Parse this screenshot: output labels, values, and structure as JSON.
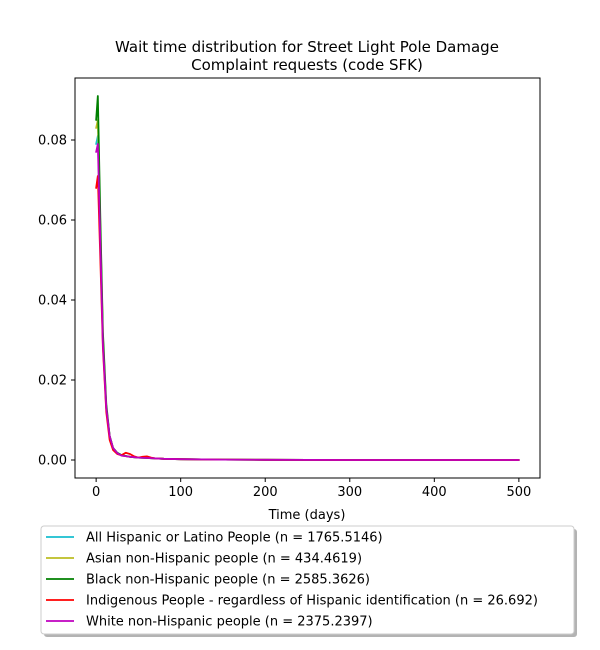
{
  "chart_data": {
    "type": "line",
    "title_line1": "Wait time distribution  for Street Light Pole Damage",
    "title_line2": "Complaint  requests (code SFK)",
    "xlabel": "Time (days)",
    "ylabel": "",
    "xlim": [
      -25,
      525
    ],
    "ylim": [
      -0.0045,
      0.0955
    ],
    "xticks": [
      0,
      100,
      200,
      300,
      400,
      500
    ],
    "xtick_labels": [
      "0",
      "100",
      "200",
      "300",
      "400",
      "500"
    ],
    "yticks": [
      0.0,
      0.02,
      0.04,
      0.06,
      0.08
    ],
    "ytick_labels": [
      "0.00",
      "0.02",
      "0.04",
      "0.06",
      "0.08"
    ],
    "grid": false,
    "legend_position": "below-plot",
    "series": [
      {
        "name": "All Hispanic or Latino People (n = 1765.5146)",
        "color": "#17becf",
        "x": [
          0,
          2,
          5,
          8,
          12,
          16,
          20,
          25,
          30,
          40,
          50,
          60,
          80,
          100,
          150,
          200,
          300,
          400,
          500
        ],
        "y": [
          0.079,
          0.081,
          0.055,
          0.03,
          0.013,
          0.006,
          0.003,
          0.0018,
          0.0012,
          0.0008,
          0.0006,
          0.0005,
          0.0003,
          0.0002,
          0.0001,
          5e-05,
          0.0,
          0.0,
          0.0
        ]
      },
      {
        "name": "Asian non-Hispanic people (n = 434.4619)",
        "color": "#bcbd22",
        "x": [
          0,
          2,
          5,
          8,
          12,
          16,
          20,
          25,
          30,
          40,
          50,
          60,
          80,
          100,
          150,
          200,
          300,
          400,
          500
        ],
        "y": [
          0.083,
          0.085,
          0.058,
          0.031,
          0.013,
          0.006,
          0.003,
          0.0017,
          0.0011,
          0.0008,
          0.0006,
          0.0005,
          0.0003,
          0.0002,
          0.0001,
          5e-05,
          0.0,
          0.0,
          0.0
        ]
      },
      {
        "name": "Black non-Hispanic people (n = 2585.3626)",
        "color": "#008000",
        "x": [
          0,
          2,
          5,
          8,
          12,
          16,
          20,
          25,
          30,
          40,
          50,
          60,
          80,
          100,
          150,
          200,
          300,
          400,
          500
        ],
        "y": [
          0.085,
          0.091,
          0.06,
          0.032,
          0.014,
          0.006,
          0.003,
          0.0018,
          0.0012,
          0.0008,
          0.0006,
          0.0005,
          0.0003,
          0.0002,
          0.0001,
          5e-05,
          0.0,
          0.0,
          0.0
        ]
      },
      {
        "name": "Indigenous People - regardless of Hispanic identification (n = 26.692)",
        "color": "#ff0000",
        "x": [
          0,
          2,
          5,
          8,
          12,
          16,
          20,
          25,
          30,
          35,
          40,
          45,
          50,
          55,
          60,
          65,
          70,
          80,
          100,
          150,
          200,
          300,
          400,
          500
        ],
        "y": [
          0.068,
          0.071,
          0.05,
          0.028,
          0.012,
          0.005,
          0.0025,
          0.0015,
          0.0012,
          0.0018,
          0.0015,
          0.0009,
          0.0006,
          0.0008,
          0.0009,
          0.0006,
          0.0004,
          0.0003,
          0.0002,
          0.0001,
          5e-05,
          0.0,
          0.0,
          0.0
        ]
      },
      {
        "name": "White non-Hispanic people (n = 2375.2397)",
        "color": "#bf00bf",
        "x": [
          0,
          2,
          5,
          8,
          12,
          16,
          20,
          25,
          30,
          40,
          50,
          60,
          80,
          100,
          150,
          200,
          300,
          400,
          500
        ],
        "y": [
          0.077,
          0.079,
          0.054,
          0.029,
          0.013,
          0.006,
          0.003,
          0.0017,
          0.0011,
          0.0008,
          0.0006,
          0.0005,
          0.0003,
          0.0002,
          0.0001,
          5e-05,
          0.0,
          0.0,
          0.0
        ]
      }
    ]
  }
}
